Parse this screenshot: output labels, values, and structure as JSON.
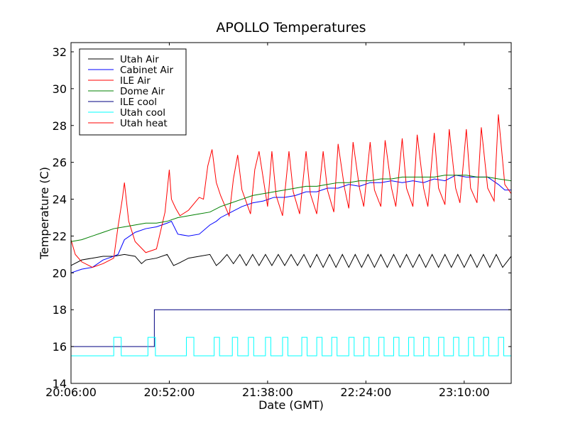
{
  "chart_data": {
    "type": "line",
    "title": "APOLLO Temperatures",
    "xlabel": "Date (GMT)",
    "ylabel": "Temperature (C)",
    "xlim_minutes": [
      0,
      206
    ],
    "ylim": [
      14,
      32.5
    ],
    "x_ticks": [
      {
        "minute": 0,
        "label": "20:06:00"
      },
      {
        "minute": 46,
        "label": "20:52:00"
      },
      {
        "minute": 92,
        "label": "21:38:00"
      },
      {
        "minute": 138,
        "label": "22:24:00"
      },
      {
        "minute": 184,
        "label": "23:10:00"
      }
    ],
    "y_ticks": [
      14,
      16,
      18,
      20,
      22,
      24,
      26,
      28,
      30,
      32
    ],
    "legend_position": "top-left",
    "series": [
      {
        "name": "Utah Air",
        "color": "#000000",
        "x": [
          0,
          5,
          10,
          15,
          20,
          25,
          30,
          33,
          35,
          40,
          45,
          48,
          50,
          55,
          60,
          65,
          68,
          70,
          73,
          76,
          79,
          82,
          85,
          88,
          91,
          94,
          97,
          100,
          103,
          106,
          109,
          112,
          115,
          118,
          121,
          124,
          127,
          130,
          133,
          136,
          139,
          142,
          145,
          148,
          151,
          154,
          157,
          160,
          163,
          166,
          169,
          172,
          175,
          178,
          181,
          184,
          187,
          190,
          193,
          196,
          199,
          202,
          206
        ],
        "y": [
          20.4,
          20.7,
          20.8,
          20.9,
          20.9,
          21.0,
          20.9,
          20.5,
          20.7,
          20.8,
          21.0,
          20.4,
          20.5,
          20.8,
          20.9,
          21.0,
          20.4,
          20.6,
          21.0,
          20.5,
          21.0,
          20.4,
          21.0,
          20.4,
          21.0,
          20.4,
          21.0,
          20.4,
          21.0,
          20.4,
          21.0,
          20.3,
          21.0,
          20.3,
          21.0,
          20.3,
          21.0,
          20.3,
          21.0,
          20.3,
          21.0,
          20.3,
          21.0,
          20.3,
          21.0,
          20.3,
          21.0,
          20.3,
          21.0,
          20.3,
          21.0,
          20.3,
          21.0,
          20.3,
          21.0,
          20.3,
          21.0,
          20.3,
          21.0,
          20.3,
          21.0,
          20.3,
          20.9
        ]
      },
      {
        "name": "Cabinet Air",
        "color": "#0000ff",
        "x": [
          0,
          5,
          10,
          15,
          20,
          22,
          25,
          30,
          35,
          40,
          45,
          47,
          50,
          55,
          60,
          65,
          68,
          70,
          75,
          80,
          85,
          90,
          95,
          100,
          105,
          110,
          115,
          120,
          125,
          130,
          135,
          140,
          145,
          150,
          155,
          160,
          165,
          170,
          175,
          180,
          185,
          190,
          195,
          200,
          203,
          206
        ],
        "y": [
          20.0,
          20.2,
          20.3,
          20.7,
          20.9,
          21.0,
          21.8,
          22.2,
          22.4,
          22.5,
          22.7,
          22.8,
          22.1,
          22.0,
          22.1,
          22.6,
          22.8,
          23.0,
          23.3,
          23.6,
          23.8,
          23.9,
          24.1,
          24.1,
          24.2,
          24.4,
          24.4,
          24.6,
          24.6,
          24.8,
          24.7,
          24.9,
          24.9,
          25.0,
          24.9,
          25.0,
          24.9,
          25.1,
          25.0,
          25.3,
          25.2,
          25.2,
          25.2,
          24.8,
          24.5,
          24.5
        ]
      },
      {
        "name": "ILE Air",
        "color": "#ff0000",
        "x": [
          0,
          2,
          5,
          10,
          15,
          20,
          22,
          24,
          25,
          27,
          30,
          35,
          40,
          44,
          46,
          47,
          49,
          51,
          55,
          60,
          62,
          64,
          66,
          68,
          70,
          74,
          76,
          78,
          80,
          84,
          86,
          88,
          92,
          94,
          96,
          99,
          102,
          104,
          107,
          110,
          112,
          115,
          118,
          120,
          123,
          125,
          128,
          130,
          132,
          135,
          137,
          140,
          142,
          145,
          147,
          150,
          152,
          155,
          157,
          160,
          162,
          165,
          167,
          170,
          172,
          175,
          177,
          180,
          182,
          185,
          187,
          190,
          192,
          195,
          198,
          200,
          203,
          206
        ],
        "y": [
          21.8,
          21.0,
          20.6,
          20.3,
          20.5,
          20.8,
          22.5,
          24.0,
          24.9,
          22.8,
          21.7,
          21.1,
          21.3,
          23.3,
          25.6,
          24.0,
          23.5,
          23.1,
          23.4,
          24.1,
          24.0,
          25.8,
          26.7,
          24.9,
          24.2,
          23.1,
          25.1,
          26.4,
          24.5,
          23.2,
          25.6,
          26.6,
          23.6,
          26.6,
          24.2,
          23.1,
          26.6,
          24.4,
          23.2,
          26.6,
          24.3,
          23.2,
          26.6,
          24.5,
          23.3,
          27.0,
          24.6,
          23.5,
          27.1,
          24.6,
          23.6,
          27.1,
          24.5,
          23.6,
          27.2,
          24.6,
          23.6,
          27.3,
          24.6,
          23.6,
          27.5,
          24.6,
          23.6,
          27.6,
          24.6,
          23.7,
          27.8,
          24.6,
          23.8,
          27.8,
          24.6,
          23.8,
          27.9,
          24.6,
          23.9,
          28.6,
          24.8,
          24.3
        ]
      },
      {
        "name": "Dome Air",
        "color": "#008000",
        "x": [
          0,
          5,
          10,
          15,
          20,
          25,
          30,
          35,
          40,
          45,
          50,
          55,
          60,
          65,
          70,
          75,
          80,
          85,
          90,
          95,
          100,
          105,
          110,
          115,
          120,
          125,
          130,
          135,
          140,
          145,
          150,
          155,
          160,
          165,
          170,
          175,
          180,
          185,
          190,
          195,
          200,
          206
        ],
        "y": [
          21.7,
          21.8,
          22.0,
          22.2,
          22.4,
          22.5,
          22.6,
          22.7,
          22.7,
          22.8,
          23.0,
          23.1,
          23.2,
          23.3,
          23.6,
          23.8,
          24.0,
          24.2,
          24.3,
          24.4,
          24.5,
          24.6,
          24.7,
          24.7,
          24.8,
          24.9,
          24.9,
          25.0,
          25.0,
          25.1,
          25.1,
          25.2,
          25.2,
          25.2,
          25.2,
          25.3,
          25.3,
          25.3,
          25.2,
          25.2,
          25.1,
          25.0
        ]
      },
      {
        "name": "ILE cool",
        "color": "#000080",
        "x": [
          0,
          39,
          39,
          206
        ],
        "y": [
          16.0,
          16.0,
          18.0,
          18.0
        ]
      },
      {
        "name": "Utah cool",
        "color": "#00ffff",
        "x": [
          0,
          20,
          20,
          23.5,
          23.5,
          36,
          36,
          39.5,
          39.5,
          54,
          54,
          57.5,
          57.5,
          67,
          67,
          69.5,
          69.5,
          75.5,
          75.5,
          78,
          78,
          83,
          83,
          85.5,
          85.5,
          91,
          91,
          93.5,
          93.5,
          99,
          99,
          101.5,
          101.5,
          108,
          108,
          110.5,
          110.5,
          115,
          115,
          117.5,
          117.5,
          122,
          122,
          124.5,
          124.5,
          130,
          130,
          132.5,
          132.5,
          137,
          137,
          139.5,
          139.5,
          144,
          144,
          146.5,
          146.5,
          151,
          151,
          153.5,
          153.5,
          158,
          158,
          160.5,
          160.5,
          165,
          165,
          167.5,
          167.5,
          172,
          172,
          174.5,
          174.5,
          179,
          179,
          181.5,
          181.5,
          186,
          186,
          188.5,
          188.5,
          193,
          193,
          195.5,
          195.5,
          200,
          200,
          202.5,
          202.5,
          206
        ],
        "y": [
          15.5,
          15.5,
          16.5,
          16.5,
          15.5,
          15.5,
          16.5,
          16.5,
          15.5,
          15.5,
          16.5,
          16.5,
          15.5,
          15.5,
          16.5,
          16.5,
          15.5,
          15.5,
          16.5,
          16.5,
          15.5,
          15.5,
          16.5,
          16.5,
          15.5,
          15.5,
          16.5,
          16.5,
          15.5,
          15.5,
          16.5,
          16.5,
          15.5,
          15.5,
          16.5,
          16.5,
          15.5,
          15.5,
          16.5,
          16.5,
          15.5,
          15.5,
          16.5,
          16.5,
          15.5,
          15.5,
          16.5,
          16.5,
          15.5,
          15.5,
          16.5,
          16.5,
          15.5,
          15.5,
          16.5,
          16.5,
          15.5,
          15.5,
          16.5,
          16.5,
          15.5,
          15.5,
          16.5,
          16.5,
          15.5,
          15.5,
          16.5,
          16.5,
          15.5,
          15.5,
          16.5,
          16.5,
          15.5,
          15.5,
          16.5,
          16.5,
          15.5,
          15.5,
          16.5,
          16.5,
          15.5,
          15.5,
          16.5,
          16.5,
          15.5,
          15.5,
          16.5,
          16.5,
          15.5,
          15.5
        ]
      },
      {
        "name": "Utah heat",
        "color": "#ff0000",
        "x": [],
        "y": []
      }
    ]
  }
}
